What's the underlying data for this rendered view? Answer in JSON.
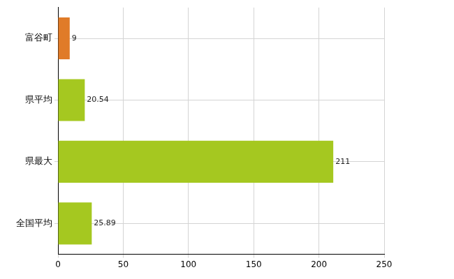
{
  "chart_data": {
    "type": "bar",
    "orientation": "horizontal",
    "categories": [
      "富谷町",
      "県平均",
      "県最大",
      "全国平均"
    ],
    "values": [
      9,
      20.54,
      211,
      25.89
    ],
    "colors": [
      "#e07b28",
      "#a5c820",
      "#a5c820",
      "#a5c820"
    ],
    "xlim": [
      0,
      250
    ],
    "xticks": [
      0,
      50,
      100,
      150,
      200,
      250
    ],
    "grid": true,
    "data_labels": true
  }
}
